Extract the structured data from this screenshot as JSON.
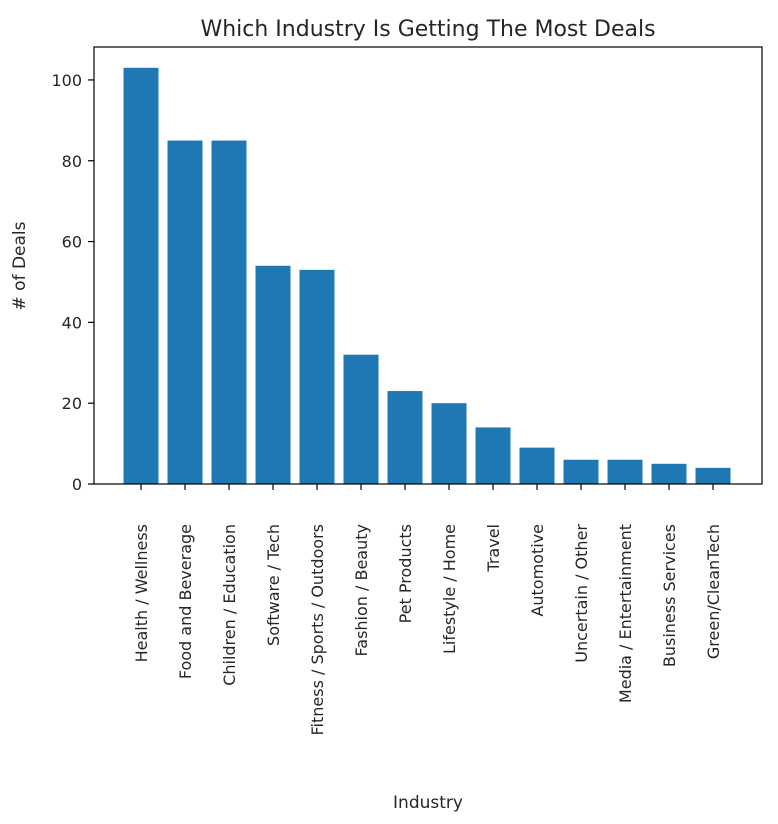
{
  "chart_data": {
    "type": "bar",
    "title": "Which Industry Is Getting The Most Deals",
    "xlabel": "Industry",
    "ylabel": "# of Deals",
    "categories": [
      "Health / Wellness",
      "Food and Beverage",
      "Children / Education",
      "Software / Tech",
      "Fitness / Sports / Outdoors",
      "Fashion / Beauty",
      "Pet Products",
      "Lifestyle / Home",
      "Travel",
      "Automotive",
      "Uncertain / Other",
      "Media / Entertainment",
      "Business Services",
      "Green/CleanTech"
    ],
    "values": [
      103,
      85,
      85,
      54,
      53,
      32,
      23,
      20,
      14,
      9,
      6,
      6,
      5,
      4
    ],
    "ylim": [
      0,
      108.15
    ],
    "yticks": [
      "0",
      "20",
      "40",
      "60",
      "80",
      "100"
    ],
    "grid": false,
    "bar_color": "#1f77b4"
  }
}
